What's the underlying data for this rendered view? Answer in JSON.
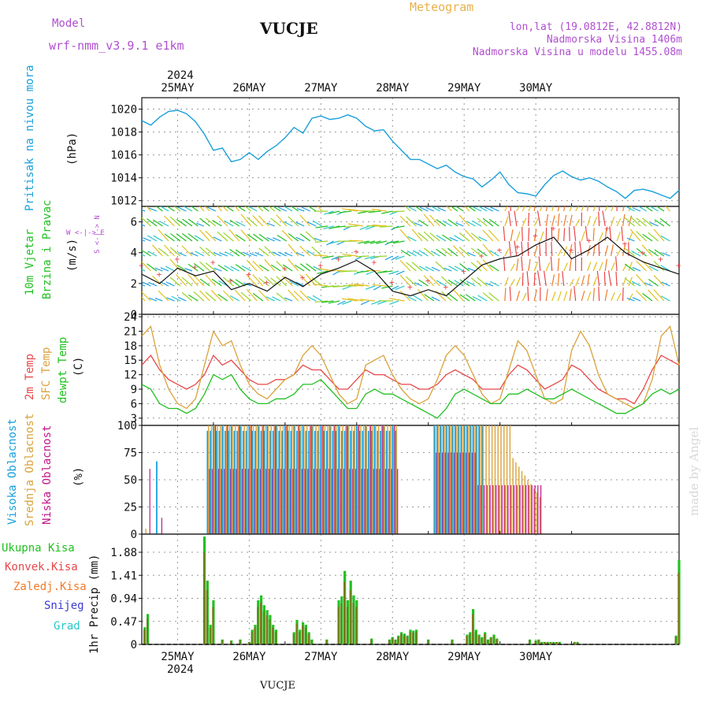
{
  "header": {
    "model_label": "Model",
    "model_name": "wrf-nmm_v3.9.1  e1km",
    "station": "VUCJE",
    "title": "Meteogram",
    "coords": "lon,lat (19.0812E, 42.8812N)",
    "altitude": "Nadmorska Visina 1406m",
    "model_altitude": "Nadmorska Visina u modelu 1455.08m",
    "footer_station": "VUCJE",
    "watermark": "made by Angel"
  },
  "dates": {
    "year": "2024",
    "days": [
      "25MAY",
      "26MAY",
      "27MAY",
      "28MAY",
      "29MAY",
      "30MAY"
    ]
  },
  "colors": {
    "pressure": "#1a9fdc",
    "temp2m": "#e8474a",
    "sfctemp": "#d9a33c",
    "dewpt": "#22c022",
    "cloud_high": "#1aa0e0",
    "cloud_mid": "#d9a33c",
    "cloud_low": "#c2178a",
    "rain_total": "#22c022",
    "rain_conv": "#e8474a",
    "rain_frz": "#f07b2a",
    "snow": "#3b3bd0",
    "hail": "#2ac6c6",
    "purple_label": "#b04fd0"
  },
  "panels": {
    "pressure": {
      "label_1": "Pritisak na nivou mora",
      "unit": "(hPa)",
      "ticks": [
        "1012",
        "1014",
        "1016",
        "1018",
        "1020"
      ]
    },
    "wind": {
      "label_1": "10m Vjetar",
      "label_2": "Brzina i Pravac",
      "unit": "(m/s)",
      "ticks": [
        "0",
        "2",
        "4",
        "6"
      ],
      "compass": "W <-|-> E",
      "compass_v": "S <-|-> N"
    },
    "temp": {
      "label_1": "2m Temp",
      "label_2": "SFC Temp",
      "label_3": "dewpt Temp",
      "unit": "(C)",
      "ticks": [
        "3",
        "6",
        "9",
        "12",
        "15",
        "18",
        "21",
        "24"
      ]
    },
    "cloud": {
      "label_1": "Visoka Oblacnost",
      "label_2": "Srednja Oblacnost",
      "label_3": "Niska Oblacnost",
      "unit": "(%)",
      "ticks": [
        "0",
        "25",
        "50",
        "75",
        "100"
      ]
    },
    "precip": {
      "label_y": "1hr Precip (mm)",
      "ticks": [
        "0",
        "0.47",
        "0.94",
        "1.41",
        "1.88"
      ],
      "legend": [
        "Ukupna Kisa",
        "Konvek.Kisa",
        "Zaledj.Kisa",
        "Snijeg",
        "Grad"
      ]
    }
  },
  "chart_data": [
    {
      "type": "line",
      "name": "pressure",
      "x_hours": [
        0,
        3,
        6,
        9,
        12,
        15,
        18,
        21,
        24,
        27,
        30,
        33,
        36,
        39,
        42,
        45,
        48,
        51,
        54,
        57,
        60,
        63,
        66,
        69,
        72,
        75,
        78,
        81,
        84,
        87,
        90,
        93,
        96,
        99,
        102,
        105,
        108,
        111,
        114,
        117,
        120,
        123,
        126,
        129,
        132,
        135,
        138,
        141,
        144,
        147,
        150,
        153,
        156,
        159,
        162,
        165,
        168,
        171,
        174,
        177,
        180
      ],
      "values": [
        1019.0,
        1018.6,
        1019.3,
        1019.8,
        1019.9,
        1019.6,
        1018.9,
        1017.8,
        1016.4,
        1016.6,
        1015.4,
        1015.6,
        1016.2,
        1015.6,
        1016.3,
        1016.8,
        1017.5,
        1018.4,
        1017.9,
        1019.2,
        1019.4,
        1019.1,
        1019.2,
        1019.5,
        1019.2,
        1018.5,
        1018.1,
        1018.2,
        1017.2,
        1016.4,
        1015.6,
        1015.6,
        1015.2,
        1014.8,
        1015.1,
        1014.5,
        1014.1,
        1013.9,
        1013.2,
        1013.8,
        1014.5,
        1013.4,
        1012.7,
        1012.6,
        1012.4,
        1013.4,
        1014.2,
        1014.6,
        1014.1,
        1013.8,
        1014.0,
        1013.7,
        1013.2,
        1012.8,
        1012.2,
        1012.9,
        1013.0,
        1012.8,
        1012.5,
        1012.2,
        1012.9
      ],
      "ylim": [
        1011.5,
        1021
      ]
    },
    {
      "type": "line",
      "name": "wind",
      "x_hours": [
        0,
        6,
        12,
        18,
        24,
        30,
        36,
        42,
        48,
        54,
        60,
        66,
        72,
        78,
        84,
        90,
        96,
        102,
        108,
        114,
        120,
        126,
        132,
        138,
        144,
        150,
        156,
        162,
        168,
        174,
        180
      ],
      "values": [
        2.6,
        2.0,
        3.0,
        2.5,
        2.8,
        1.6,
        2.0,
        1.5,
        2.4,
        1.8,
        2.6,
        3.0,
        3.5,
        2.8,
        1.5,
        1.2,
        1.6,
        1.2,
        2.2,
        3.2,
        3.6,
        3.8,
        4.5,
        5.0,
        3.6,
        4.2,
        5.0,
        4.0,
        3.4,
        3.0,
        2.6
      ],
      "ylim": [
        0,
        7
      ]
    },
    {
      "type": "line",
      "x_hours": [
        0,
        3,
        6,
        9,
        12,
        15,
        18,
        21,
        24,
        27,
        30,
        33,
        36,
        39,
        42,
        45,
        48,
        51,
        54,
        57,
        60,
        63,
        66,
        69,
        72,
        75,
        78,
        81,
        84,
        87,
        90,
        93,
        96,
        99,
        102,
        105,
        108,
        111,
        114,
        117,
        120,
        123,
        126,
        129,
        132,
        135,
        138,
        141,
        144,
        147,
        150,
        153,
        156,
        159,
        162,
        165,
        168,
        171,
        174,
        177,
        180
      ],
      "series": [
        {
          "name": "2m Temp",
          "values": [
            14,
            16,
            13,
            11,
            10,
            9,
            10,
            12,
            16,
            14,
            15,
            13,
            11,
            10,
            10,
            11,
            11,
            12,
            14,
            13,
            13,
            11,
            9,
            9,
            11,
            13,
            12,
            12,
            11,
            10,
            10,
            9,
            9,
            10,
            12,
            13,
            12,
            11,
            9,
            9,
            9,
            12,
            14,
            13,
            11,
            9,
            10,
            11,
            14,
            13,
            11,
            9,
            8,
            7,
            7,
            6,
            9,
            13,
            16,
            15,
            14
          ],
          "description_hidden": true
        },
        {
          "name": "SFC Temp",
          "values": [
            20,
            22,
            14,
            9,
            6,
            5,
            7,
            14,
            21,
            18,
            19,
            14,
            10,
            8,
            7,
            9,
            11,
            12,
            16,
            18,
            16,
            12,
            8,
            6,
            7,
            14,
            15,
            16,
            12,
            9,
            7,
            6,
            7,
            11,
            16,
            18,
            16,
            12,
            8,
            6,
            7,
            13,
            19,
            17,
            12,
            7,
            6,
            7,
            17,
            21,
            18,
            12,
            8,
            7,
            6,
            5,
            6,
            11,
            20,
            22,
            14
          ]
        },
        {
          "name": "dewpt Temp",
          "values": [
            10,
            9,
            6,
            5,
            5,
            4,
            5,
            8,
            12,
            11,
            12,
            9,
            7,
            6,
            6,
            7,
            7,
            8,
            10,
            10,
            11,
            9,
            7,
            5,
            5,
            8,
            9,
            8,
            8,
            7,
            6,
            5,
            4,
            3,
            5,
            8,
            9,
            8,
            7,
            6,
            6,
            8,
            8,
            9,
            8,
            7,
            7,
            8,
            9,
            8,
            7,
            6,
            5,
            4,
            4,
            5,
            6,
            8,
            9,
            8,
            9
          ]
        }
      ],
      "ylim": [
        1.5,
        24.5
      ]
    },
    {
      "type": "bar",
      "name": "cloud",
      "ylim": [
        0,
        100
      ]
    },
    {
      "type": "bar",
      "name": "precip",
      "x_hours": [
        1,
        2,
        21,
        22,
        23,
        24,
        27,
        30,
        33,
        36,
        37,
        38,
        39,
        40,
        41,
        42,
        43,
        44,
        45,
        51,
        52,
        53,
        54,
        55,
        56,
        57,
        62,
        66,
        67,
        68,
        69,
        70,
        71,
        72,
        77,
        83,
        84,
        85,
        86,
        87,
        88,
        89,
        90,
        91,
        92,
        96,
        104,
        109,
        110,
        111,
        112,
        113,
        114,
        115,
        116,
        117,
        118,
        119,
        130,
        132,
        133,
        134,
        135,
        136,
        137,
        138,
        139,
        140,
        145,
        146,
        179,
        180
      ],
      "values": [
        0.35,
        0.62,
        2.2,
        1.3,
        0.4,
        0.9,
        0.1,
        0.08,
        0.1,
        0.05,
        0.3,
        0.4,
        0.9,
        1.0,
        0.8,
        0.7,
        0.6,
        0.4,
        0.3,
        0.25,
        0.5,
        0.3,
        0.45,
        0.4,
        0.25,
        0.1,
        0.1,
        0.9,
        0.98,
        1.5,
        0.9,
        1.3,
        1.0,
        0.9,
        0.12,
        0.1,
        0.15,
        0.1,
        0.18,
        0.25,
        0.22,
        0.18,
        0.3,
        0.28,
        0.3,
        0.1,
        0.1,
        0.2,
        0.25,
        0.72,
        0.3,
        0.2,
        0.15,
        0.25,
        0.1,
        0.15,
        0.2,
        0.12,
        0.1,
        0.08,
        0.1,
        0.05,
        0.05,
        0.05,
        0.05,
        0.05,
        0.05,
        0.05,
        0.05,
        0.05,
        0.18,
        1.72
      ],
      "ylim": [
        0,
        2.25
      ]
    }
  ]
}
